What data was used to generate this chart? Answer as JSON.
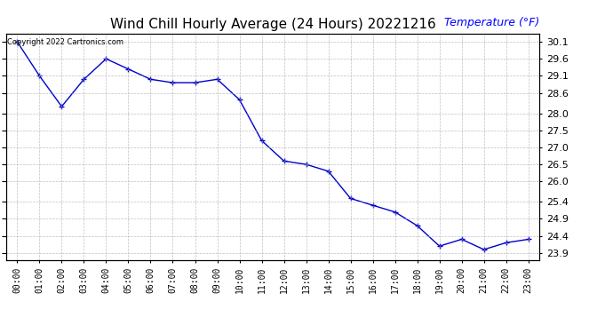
{
  "title": "Wind Chill Hourly Average (24 Hours) 20221216",
  "ylabel": "Temperature (°F)",
  "copyright_text": "Copyright 2022 Cartronics.com",
  "line_color": "#0000cc",
  "marker_color": "#0000cc",
  "background_color": "#ffffff",
  "grid_color": "#b0b0b0",
  "hours": [
    "00:00",
    "01:00",
    "02:00",
    "03:00",
    "04:00",
    "05:00",
    "06:00",
    "07:00",
    "08:00",
    "09:00",
    "10:00",
    "11:00",
    "12:00",
    "13:00",
    "14:00",
    "15:00",
    "16:00",
    "17:00",
    "18:00",
    "19:00",
    "20:00",
    "21:00",
    "22:00",
    "23:00"
  ],
  "values": [
    30.1,
    29.1,
    28.2,
    29.0,
    29.6,
    29.3,
    29.0,
    28.9,
    28.9,
    29.0,
    28.4,
    27.2,
    26.6,
    26.5,
    26.3,
    25.5,
    25.3,
    25.1,
    24.7,
    24.1,
    24.3,
    24.0,
    24.2,
    24.3
  ],
  "ylim_min": 23.7,
  "ylim_max": 30.35,
  "yticks": [
    23.9,
    24.4,
    24.9,
    25.4,
    26.0,
    26.5,
    27.0,
    27.5,
    28.0,
    28.6,
    29.1,
    29.6,
    30.1
  ],
  "ylabel_color": "#0000ff",
  "title_color": "#000000",
  "title_fontsize": 11,
  "ylabel_fontsize": 9,
  "tick_fontsize": 8,
  "xtick_fontsize": 7
}
